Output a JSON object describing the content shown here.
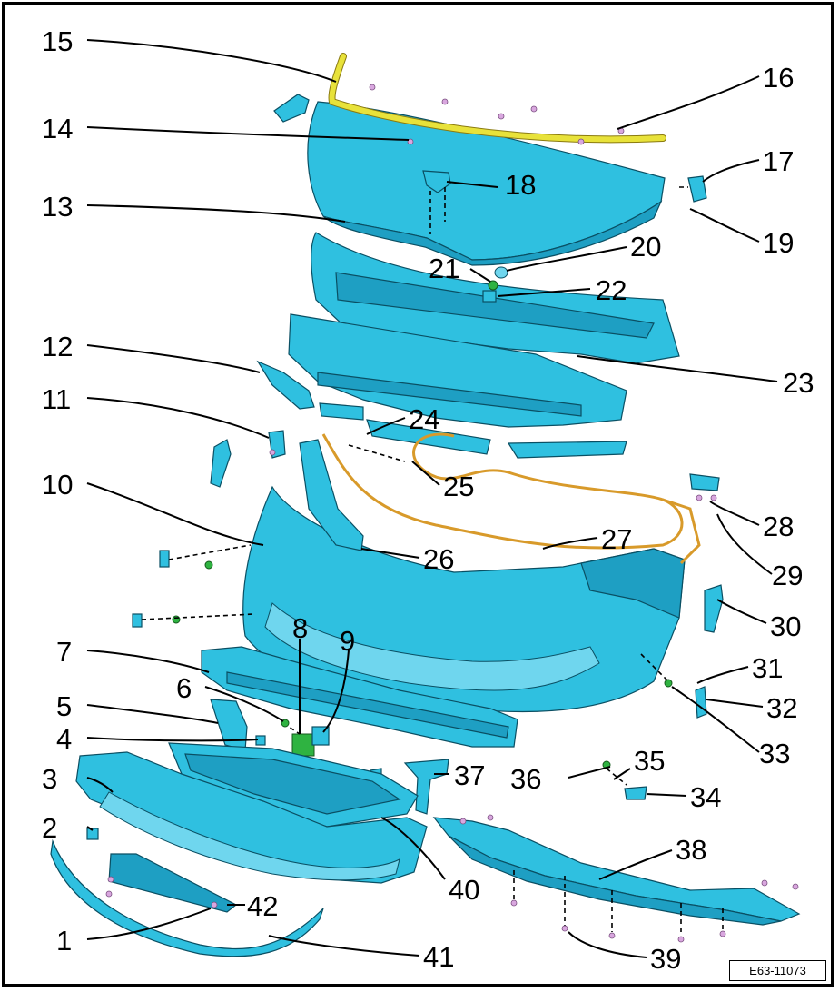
{
  "callouts": [
    "1",
    "2",
    "3",
    "4",
    "5",
    "6",
    "7",
    "8",
    "9",
    "10",
    "11",
    "12",
    "13",
    "14",
    "15",
    "16",
    "17",
    "18",
    "19",
    "20",
    "21",
    "22",
    "23",
    "24",
    "25",
    "26",
    "27",
    "28",
    "29",
    "30",
    "31",
    "32",
    "33",
    "34",
    "35",
    "36",
    "37",
    "38",
    "39",
    "40",
    "41",
    "42"
  ],
  "figure_code": "E63-11073",
  "colors": {
    "part": "#2fc0e0",
    "seal": "#e8e23a",
    "wiring": "#d89a2a",
    "connector": "#2fb341",
    "clip": "#d9a7df"
  }
}
